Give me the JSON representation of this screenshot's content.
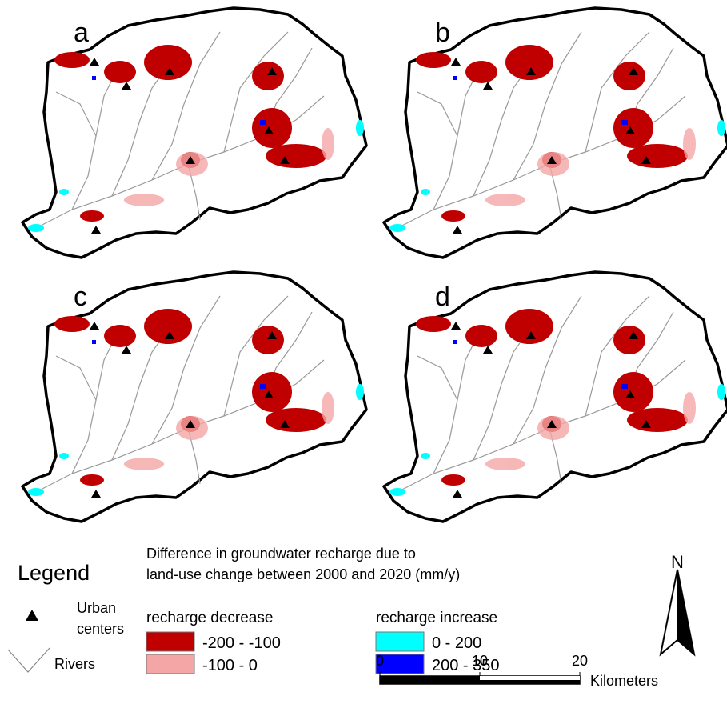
{
  "panels": [
    {
      "label": "a"
    },
    {
      "label": "b"
    },
    {
      "label": "c"
    },
    {
      "label": "d"
    }
  ],
  "legend": {
    "title": "Legend",
    "symbols": [
      {
        "label_lines": [
          "Urban",
          "centers"
        ]
      },
      {
        "label_lines": [
          "Rivers"
        ]
      }
    ],
    "description_lines": [
      "Difference in groundwater recharge due to",
      "land-use change between 2000 and 2020 (mm/y)"
    ],
    "decrease": {
      "title": "recharge decrease",
      "classes": [
        {
          "label": "-200 - -100",
          "color": "#c00000"
        },
        {
          "label": "-100 - 0",
          "color": "#f4a6a6"
        }
      ]
    },
    "increase": {
      "title": "recharge increase",
      "classes": [
        {
          "label": "0 - 200",
          "color": "#00ffff"
        },
        {
          "label": "200 - 350",
          "color": "#0000ff"
        }
      ]
    }
  },
  "north": "N",
  "scale": {
    "ticks": [
      0,
      10,
      20
    ],
    "unit": "Kilometers"
  }
}
